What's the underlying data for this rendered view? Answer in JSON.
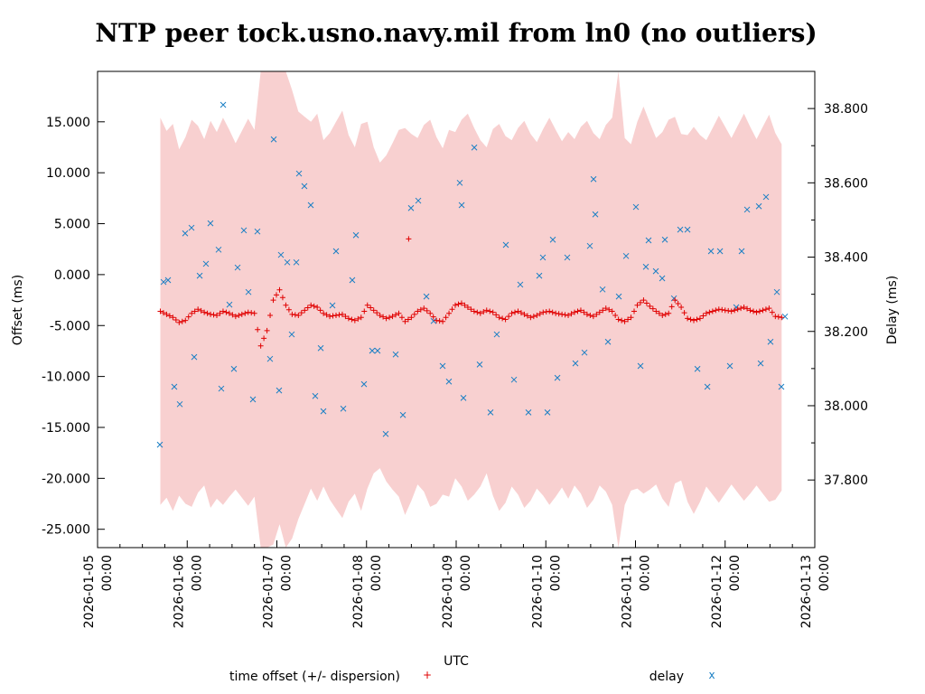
{
  "chart_data": {
    "type": "scatter",
    "title": "NTP peer tock.usno.navy.mil from ln0 (no outliers)",
    "xlabel": "UTC",
    "ylabel": "Offset (ms)",
    "y2label": "Delay (ms)",
    "x_units": "days since 2026-01-05 00:00 UTC",
    "xlim": [
      0,
      8
    ],
    "ylim": [
      -26.8,
      19.95
    ],
    "y2lim": [
      37.618,
      38.9
    ],
    "x_ticks": [
      {
        "value": 0,
        "date": "2026-01-05",
        "time": "00:00"
      },
      {
        "value": 1,
        "date": "2026-01-06",
        "time": "00:00"
      },
      {
        "value": 2,
        "date": "2026-01-07",
        "time": "00:00"
      },
      {
        "value": 3,
        "date": "2026-01-08",
        "time": "00:00"
      },
      {
        "value": 4,
        "date": "2026-01-09",
        "time": "00:00"
      },
      {
        "value": 5,
        "date": "2026-01-10",
        "time": "00:00"
      },
      {
        "value": 6,
        "date": "2026-01-11",
        "time": "00:00"
      },
      {
        "value": 7,
        "date": "2026-01-12",
        "time": "00:00"
      },
      {
        "value": 8,
        "date": "2026-01-13",
        "time": "00:00"
      }
    ],
    "y_ticks": [
      {
        "value": 15,
        "label": "15.000"
      },
      {
        "value": 10,
        "label": "10.000"
      },
      {
        "value": 5,
        "label": "5.000"
      },
      {
        "value": 0,
        "label": "0.000"
      },
      {
        "value": -5,
        "label": "-5.000"
      },
      {
        "value": -10,
        "label": "-10.000"
      },
      {
        "value": -15,
        "label": "-15.000"
      },
      {
        "value": -20,
        "label": "-20.000"
      },
      {
        "value": -25,
        "label": "-25.000"
      }
    ],
    "y2_ticks": [
      {
        "value": 38.8,
        "label": "38.800"
      },
      {
        "value": 38.6,
        "label": "38.600"
      },
      {
        "value": 38.4,
        "label": "38.400"
      },
      {
        "value": 38.2,
        "label": "38.200"
      },
      {
        "value": 38.0,
        "label": "38.000"
      },
      {
        "value": 37.8,
        "label": "37.800"
      }
    ],
    "legend": {
      "placement": "bottom",
      "entries": [
        {
          "label": "time offset (+/- dispersion)",
          "marker": "+",
          "color": "#e00000"
        },
        {
          "label": "delay",
          "marker": "x",
          "color": "#1a7fc4"
        }
      ]
    },
    "colors": {
      "band": "#f8d0d0",
      "offset": "#e00000",
      "delay": "#1a7fc4"
    },
    "offset_series": {
      "t_start": 0.7,
      "t_step": 0.07,
      "offset": [
        -3.6,
        -3.9,
        -4.2,
        -4.7,
        -4.5,
        -3.8,
        -3.4,
        -3.7,
        -3.9,
        -4.0,
        -3.6,
        -3.8,
        -4.1,
        -3.9,
        -3.7,
        -3.8,
        -7.0,
        -5.5,
        -2.5,
        -1.5,
        -3.0,
        -3.9,
        -4.0,
        -3.5,
        -3.0,
        -3.2,
        -3.8,
        -4.1,
        -4.0,
        -3.9,
        -4.3,
        -4.5,
        -4.2,
        -3.0,
        -3.5,
        -4.0,
        -4.3,
        -4.1,
        -3.8,
        -4.6,
        -4.2,
        -3.6,
        -3.3,
        -3.8,
        -4.5,
        -4.6,
        -3.8,
        -3.0,
        -2.8,
        -3.2,
        -3.6,
        -3.8,
        -3.5,
        -3.7,
        -4.2,
        -4.4,
        -3.8,
        -3.6,
        -3.9,
        -4.2,
        -4.0,
        -3.7,
        -3.6,
        -3.8,
        -3.9,
        -4.0,
        -3.7,
        -3.5,
        -3.9,
        -4.1,
        -3.7,
        -3.3,
        -3.6,
        -4.4,
        -4.6,
        -4.2,
        -3.0,
        -2.5,
        -3.1,
        -3.6,
        -4.0,
        -3.8,
        -2.5,
        -3.2,
        -4.3,
        -4.5,
        -4.3,
        -3.8,
        -3.6,
        -3.4,
        -3.5,
        -3.6,
        -3.4,
        -3.2,
        -3.5,
        -3.7,
        -3.5,
        -3.3,
        -4.1,
        -4.2
      ],
      "dispersion": [
        19,
        18,
        19,
        17,
        18,
        19,
        18,
        17,
        19,
        18,
        19,
        18,
        17,
        18,
        19,
        18,
        40,
        40,
        24,
        23,
        24,
        22,
        20,
        19,
        18,
        19,
        17,
        18,
        19,
        20,
        18,
        17,
        19,
        18,
        16,
        15,
        16,
        17,
        18,
        19,
        18,
        17,
        18,
        19,
        18,
        17,
        18,
        17,
        18,
        19,
        18,
        17,
        16,
        18,
        19,
        18,
        17,
        18,
        19,
        18,
        17,
        18,
        19,
        18,
        17,
        18,
        17,
        18,
        19,
        18,
        17,
        18,
        19,
        30,
        18,
        17,
        18,
        19,
        18,
        17,
        18,
        19,
        18,
        17,
        18,
        19,
        18,
        17,
        18,
        19,
        18,
        17,
        18,
        19,
        18,
        17,
        18,
        19,
        18,
        17
      ],
      "outliers": [
        [
          3.47,
          3.5
        ]
      ]
    },
    "delay_points": [
      [
        0.695,
        37.895
      ],
      [
        0.736,
        38.333
      ],
      [
        0.786,
        38.338
      ],
      [
        0.856,
        38.051
      ],
      [
        0.917,
        38.004
      ],
      [
        0.977,
        38.464
      ],
      [
        1.048,
        38.479
      ],
      [
        1.078,
        38.131
      ],
      [
        1.139,
        38.35
      ],
      [
        1.209,
        38.382
      ],
      [
        1.259,
        38.491
      ],
      [
        1.35,
        38.42
      ],
      [
        1.38,
        38.046
      ],
      [
        1.401,
        38.81
      ],
      [
        1.471,
        38.272
      ],
      [
        1.521,
        38.099
      ],
      [
        1.562,
        38.372
      ],
      [
        1.632,
        38.472
      ],
      [
        1.683,
        38.306
      ],
      [
        1.733,
        38.017
      ],
      [
        1.783,
        38.469
      ],
      [
        1.924,
        38.126
      ],
      [
        1.965,
        38.717
      ],
      [
        2.025,
        38.041
      ],
      [
        2.045,
        38.406
      ],
      [
        2.116,
        38.386
      ],
      [
        2.166,
        38.192
      ],
      [
        2.217,
        38.386
      ],
      [
        2.247,
        38.625
      ],
      [
        2.307,
        38.591
      ],
      [
        2.378,
        38.54
      ],
      [
        2.428,
        38.026
      ],
      [
        2.489,
        38.155
      ],
      [
        2.519,
        37.985
      ],
      [
        2.62,
        38.27
      ],
      [
        2.66,
        38.416
      ],
      [
        2.741,
        37.992
      ],
      [
        2.841,
        38.338
      ],
      [
        2.882,
        38.459
      ],
      [
        2.972,
        38.058
      ],
      [
        3.063,
        38.148
      ],
      [
        3.123,
        38.148
      ],
      [
        3.214,
        37.924
      ],
      [
        3.325,
        38.138
      ],
      [
        3.406,
        37.975
      ],
      [
        3.496,
        38.532
      ],
      [
        3.577,
        38.552
      ],
      [
        3.668,
        38.294
      ],
      [
        3.748,
        38.228
      ],
      [
        3.849,
        38.107
      ],
      [
        3.919,
        38.065
      ],
      [
        4.04,
        38.6
      ],
      [
        4.061,
        38.54
      ],
      [
        4.081,
        38.021
      ],
      [
        4.202,
        38.695
      ],
      [
        4.262,
        38.111
      ],
      [
        4.383,
        37.982
      ],
      [
        4.453,
        38.192
      ],
      [
        4.554,
        38.433
      ],
      [
        4.645,
        38.07
      ],
      [
        4.715,
        38.326
      ],
      [
        4.806,
        37.982
      ],
      [
        4.927,
        38.35
      ],
      [
        4.967,
        38.399
      ],
      [
        5.018,
        37.982
      ],
      [
        5.078,
        38.447
      ],
      [
        5.129,
        38.075
      ],
      [
        5.239,
        38.399
      ],
      [
        5.33,
        38.114
      ],
      [
        5.431,
        38.143
      ],
      [
        5.491,
        38.43
      ],
      [
        5.532,
        38.61
      ],
      [
        5.552,
        38.515
      ],
      [
        5.633,
        38.313
      ],
      [
        5.693,
        38.172
      ],
      [
        5.814,
        38.294
      ],
      [
        5.895,
        38.403
      ],
      [
        6.005,
        38.535
      ],
      [
        6.056,
        38.107
      ],
      [
        6.116,
        38.374
      ],
      [
        6.146,
        38.445
      ],
      [
        6.227,
        38.362
      ],
      [
        6.298,
        38.343
      ],
      [
        6.328,
        38.447
      ],
      [
        6.429,
        38.289
      ],
      [
        6.499,
        38.474
      ],
      [
        6.58,
        38.474
      ],
      [
        6.691,
        38.099
      ],
      [
        6.802,
        38.051
      ],
      [
        6.842,
        38.416
      ],
      [
        6.943,
        38.416
      ],
      [
        7.053,
        38.107
      ],
      [
        7.124,
        38.265
      ],
      [
        7.184,
        38.416
      ],
      [
        7.245,
        38.528
      ],
      [
        7.376,
        38.537
      ],
      [
        7.396,
        38.114
      ],
      [
        7.456,
        38.562
      ],
      [
        7.506,
        38.172
      ],
      [
        7.577,
        38.306
      ],
      [
        7.627,
        38.051
      ],
      [
        7.668,
        38.24
      ]
    ]
  }
}
